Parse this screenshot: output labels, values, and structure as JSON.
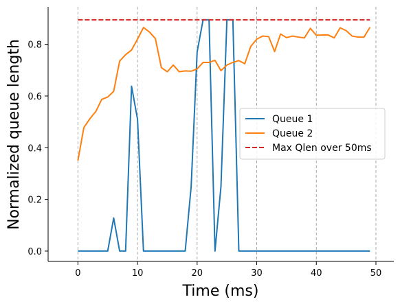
{
  "chart_data": {
    "type": "line",
    "title": "",
    "xlabel": "Time (ms)",
    "ylabel": "Normalized queue length",
    "xlim": [
      -5,
      53
    ],
    "ylim": [
      -0.04,
      0.945
    ],
    "x_ticks": [
      0,
      10,
      20,
      30,
      40,
      50
    ],
    "y_ticks": [
      0.0,
      0.2,
      0.4,
      0.6,
      0.8
    ],
    "x_tick_labels": [
      "0",
      "10",
      "20",
      "30",
      "40",
      "50"
    ],
    "y_tick_labels": [
      "0.0",
      "0.2",
      "0.4",
      "0.6",
      "0.8"
    ],
    "grid": "vertical dashed gray lines at x ticks",
    "legend_position": "center-right",
    "series": [
      {
        "name": "Queue 1",
        "color": "#1f77b4",
        "style": "solid",
        "x": [
          0,
          1,
          2,
          3,
          4,
          5,
          6,
          7,
          8,
          9,
          10,
          11,
          12,
          13,
          14,
          15,
          16,
          17,
          18,
          19,
          20,
          21,
          22,
          23,
          24,
          25,
          26,
          27,
          28,
          29,
          30,
          31,
          32,
          33,
          34,
          35,
          36,
          37,
          38,
          39,
          40,
          41,
          42,
          43,
          44,
          45,
          46,
          47,
          48,
          49
        ],
        "values": [
          0,
          0,
          0,
          0,
          0,
          0,
          0.128,
          0,
          0,
          0.638,
          0.51,
          0,
          0,
          0,
          0,
          0,
          0,
          0,
          0,
          0.25,
          0.77,
          0.895,
          0.895,
          0,
          0.25,
          0.895,
          0.895,
          0,
          0,
          0,
          0,
          0,
          0,
          0,
          0,
          0,
          0,
          0,
          0,
          0,
          0,
          0,
          0,
          0,
          0,
          0,
          0,
          0,
          0,
          0
        ]
      },
      {
        "name": "Queue 2",
        "color": "#ff7f0e",
        "style": "solid",
        "x": [
          0,
          1,
          2,
          3,
          4,
          5,
          6,
          7,
          8,
          9,
          10,
          11,
          12,
          13,
          14,
          15,
          16,
          17,
          18,
          19,
          20,
          21,
          22,
          23,
          24,
          25,
          26,
          27,
          28,
          29,
          30,
          31,
          32,
          33,
          34,
          35,
          36,
          37,
          38,
          39,
          40,
          41,
          42,
          43,
          44,
          45,
          46,
          47,
          48,
          49
        ],
        "values": [
          0.35,
          0.478,
          0.512,
          0.54,
          0.587,
          0.596,
          0.618,
          0.735,
          0.76,
          0.778,
          0.82,
          0.865,
          0.848,
          0.822,
          0.71,
          0.694,
          0.72,
          0.694,
          0.697,
          0.696,
          0.705,
          0.73,
          0.73,
          0.738,
          0.698,
          0.72,
          0.73,
          0.737,
          0.725,
          0.792,
          0.82,
          0.832,
          0.83,
          0.772,
          0.84,
          0.826,
          0.832,
          0.828,
          0.825,
          0.862,
          0.835,
          0.836,
          0.836,
          0.825,
          0.864,
          0.853,
          0.832,
          0.828,
          0.828,
          0.866
        ]
      },
      {
        "name": "Max Qlen over 50ms",
        "color": "#d62728",
        "style": "dashed",
        "x": [
          0,
          49
        ],
        "values": [
          0.895,
          0.895
        ]
      }
    ]
  }
}
